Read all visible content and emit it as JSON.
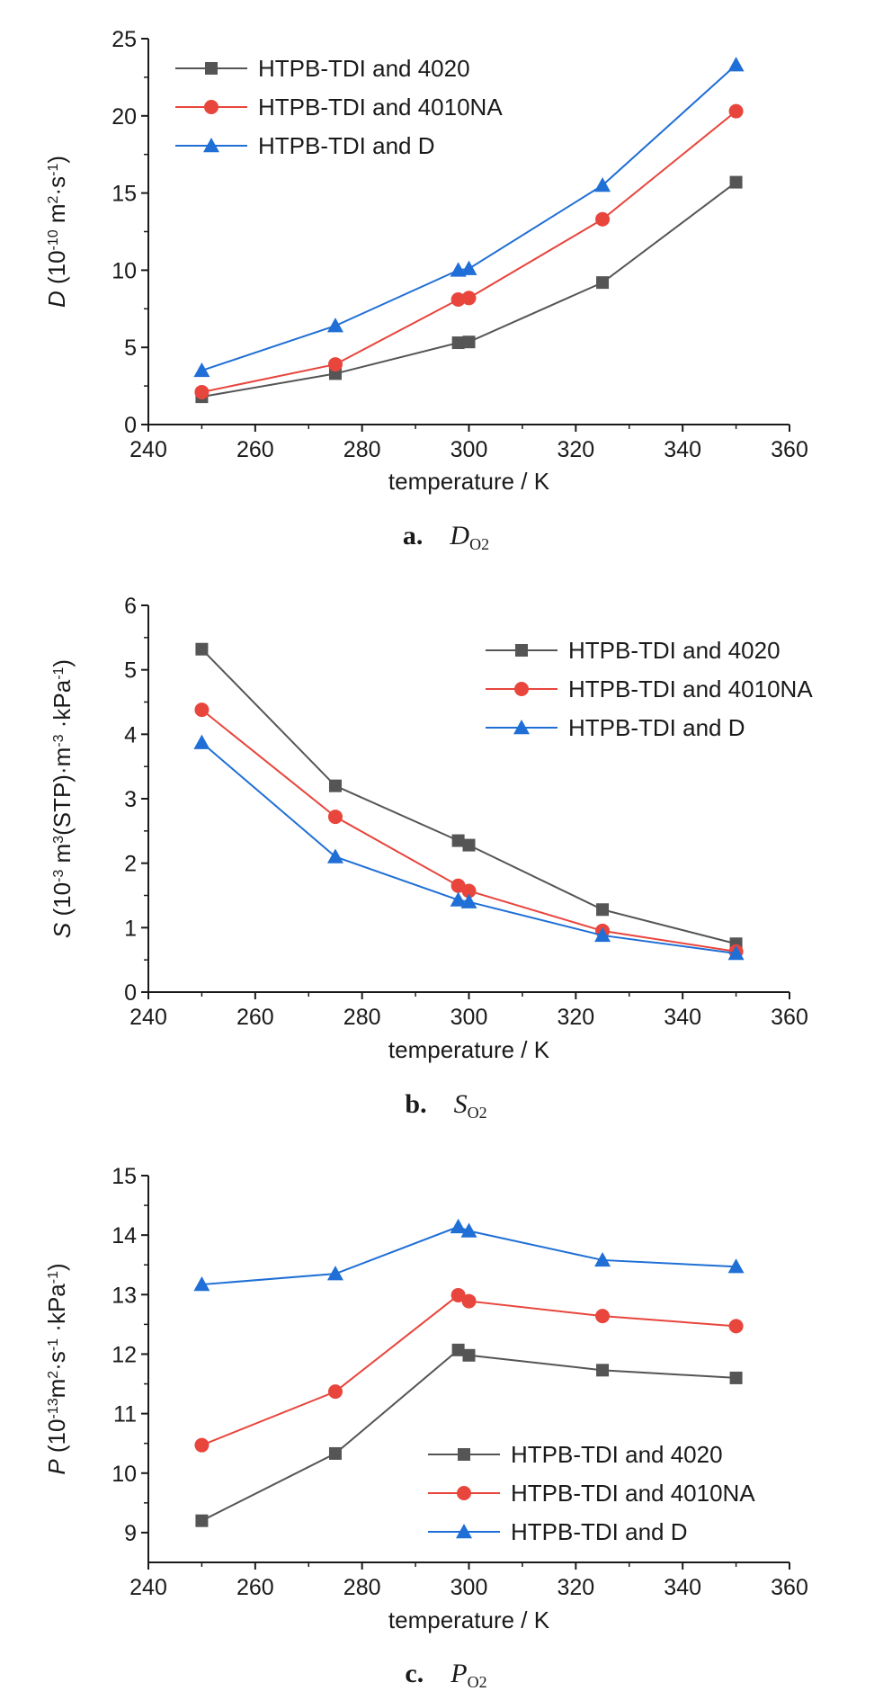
{
  "colors": {
    "HTPB-TDI and 4020": "#555555",
    "HTPB-TDI and 4010NA": "#e8453c",
    "HTPB-TDI and D": "#1f6fd6"
  },
  "chart_data": [
    {
      "type": "line",
      "panel": "a",
      "caption": {
        "letter": "a.",
        "sym": "D",
        "sub": "O2"
      },
      "xlabel": "temperature / K",
      "ylabel": {
        "sym": "D",
        "pre": " (10",
        "e1": "-10",
        "mid1": " m",
        "e2": "2",
        "mid2": "·s",
        "e3": "-1",
        "post": ")"
      },
      "xlim": [
        240,
        360
      ],
      "ylim": [
        0,
        25
      ],
      "xticks": [
        240,
        260,
        280,
        300,
        320,
        340,
        360
      ],
      "yticks": [
        0,
        5,
        10,
        15,
        20,
        25
      ],
      "grid": false,
      "legend_position": "top-left",
      "x": [
        250,
        275,
        298,
        300,
        325,
        350
      ],
      "series": [
        {
          "name": "HTPB-TDI and 4020",
          "marker": "square",
          "values": [
            1.8,
            3.3,
            5.3,
            5.35,
            9.2,
            15.7
          ]
        },
        {
          "name": "HTPB-TDI and 4010NA",
          "marker": "circle",
          "values": [
            2.1,
            3.9,
            8.1,
            8.2,
            13.3,
            20.3
          ]
        },
        {
          "name": "HTPB-TDI and D",
          "marker": "triangle",
          "values": [
            3.5,
            6.4,
            10.0,
            10.1,
            15.5,
            23.3
          ]
        }
      ]
    },
    {
      "type": "line",
      "panel": "b",
      "caption": {
        "letter": "b.",
        "sym": "S",
        "sub": "O2"
      },
      "xlabel": "temperature / K",
      "ylabel": {
        "sym": "S",
        "pre": " (10",
        "e1": "-3",
        "mid1": " m",
        "e2": "3",
        "mid2": "(STP)·m",
        "e3": "-3",
        "mid3": " ·kPa",
        "e4": "-1",
        "post": ")"
      },
      "xlim": [
        240,
        360
      ],
      "ylim": [
        0,
        6
      ],
      "xticks": [
        240,
        260,
        280,
        300,
        320,
        340,
        360
      ],
      "yticks": [
        0,
        1,
        2,
        3,
        4,
        5,
        6
      ],
      "grid": false,
      "legend_position": "top-right",
      "x": [
        250,
        275,
        298,
        300,
        325,
        350
      ],
      "series": [
        {
          "name": "HTPB-TDI and 4020",
          "marker": "square",
          "values": [
            5.32,
            3.2,
            2.35,
            2.28,
            1.28,
            0.75
          ]
        },
        {
          "name": "HTPB-TDI and 4010NA",
          "marker": "circle",
          "values": [
            4.38,
            2.72,
            1.65,
            1.57,
            0.95,
            0.63
          ]
        },
        {
          "name": "HTPB-TDI and D",
          "marker": "triangle",
          "values": [
            3.87,
            2.1,
            1.43,
            1.4,
            0.88,
            0.6
          ]
        }
      ]
    },
    {
      "type": "line",
      "panel": "c",
      "caption": {
        "letter": "c.",
        "sym": "P",
        "sub": "O2"
      },
      "xlabel": "temperature / K",
      "ylabel": {
        "sym": "P",
        "pre": " (10",
        "e1": "-13",
        "mid1": "m",
        "e2": "2",
        "mid2": "·s",
        "e3": "-1",
        "mid3": " ·kPa",
        "e4": "-1",
        "post": ")"
      },
      "xlim": [
        240,
        360
      ],
      "ylim": [
        8.5,
        15
      ],
      "xticks": [
        240,
        260,
        280,
        300,
        320,
        340,
        360
      ],
      "yticks": [
        9,
        10,
        11,
        12,
        13,
        14,
        15
      ],
      "grid": false,
      "legend_position": "bottom-right",
      "x": [
        250,
        275,
        298,
        300,
        325,
        350
      ],
      "series": [
        {
          "name": "HTPB-TDI and 4020",
          "marker": "square",
          "values": [
            9.2,
            10.33,
            12.07,
            11.98,
            11.73,
            11.6
          ]
        },
        {
          "name": "HTPB-TDI and 4010NA",
          "marker": "circle",
          "values": [
            10.47,
            11.37,
            12.99,
            12.89,
            12.64,
            12.47
          ]
        },
        {
          "name": "HTPB-TDI and D",
          "marker": "triangle",
          "values": [
            13.17,
            13.35,
            14.14,
            14.07,
            13.58,
            13.47
          ]
        }
      ]
    }
  ]
}
